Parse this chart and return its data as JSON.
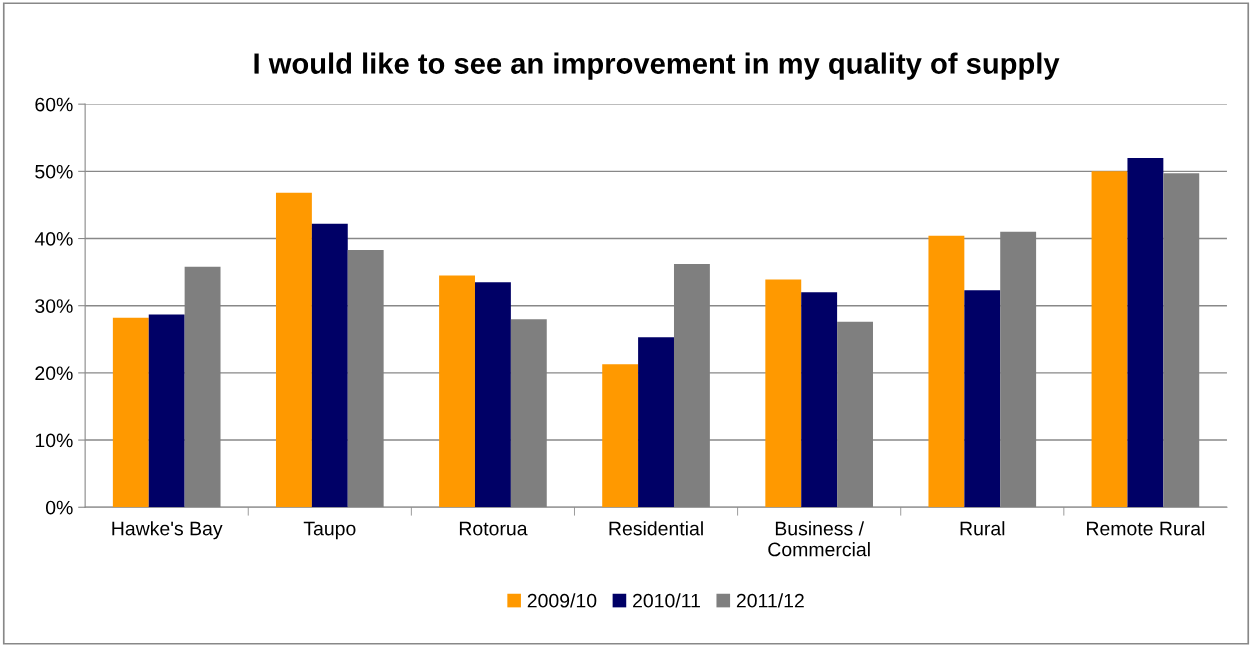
{
  "chart_data": {
    "type": "bar",
    "title": "I would like to see an improvement in my quality of supply",
    "categories": [
      "Hawke's Bay",
      "Taupo",
      "Rotorua",
      "Residential",
      "Business /\nCommercial",
      "Rural",
      "Remote Rural"
    ],
    "series": [
      {
        "name": "2009/10",
        "color": "#ff9900",
        "values": [
          28.2,
          46.8,
          34.5,
          21.3,
          33.9,
          40.4,
          50.0
        ]
      },
      {
        "name": "2010/11",
        "color": "#000066",
        "values": [
          28.7,
          42.2,
          33.5,
          25.3,
          32.0,
          32.3,
          52.0
        ]
      },
      {
        "name": "2011/12",
        "color": "#7f7f7f",
        "values": [
          35.8,
          38.3,
          28.0,
          36.2,
          27.6,
          41.0,
          49.7
        ]
      }
    ],
    "ylim": [
      0,
      60
    ],
    "yticks": [
      {
        "value": 0,
        "label": "0%"
      },
      {
        "value": 10,
        "label": "10%"
      },
      {
        "value": 20,
        "label": "20%"
      },
      {
        "value": 30,
        "label": "30%"
      },
      {
        "value": 40,
        "label": "40%"
      },
      {
        "value": 50,
        "label": "50%"
      },
      {
        "value": 60,
        "label": "60%"
      }
    ],
    "grid": "y",
    "legend": "bottom"
  }
}
